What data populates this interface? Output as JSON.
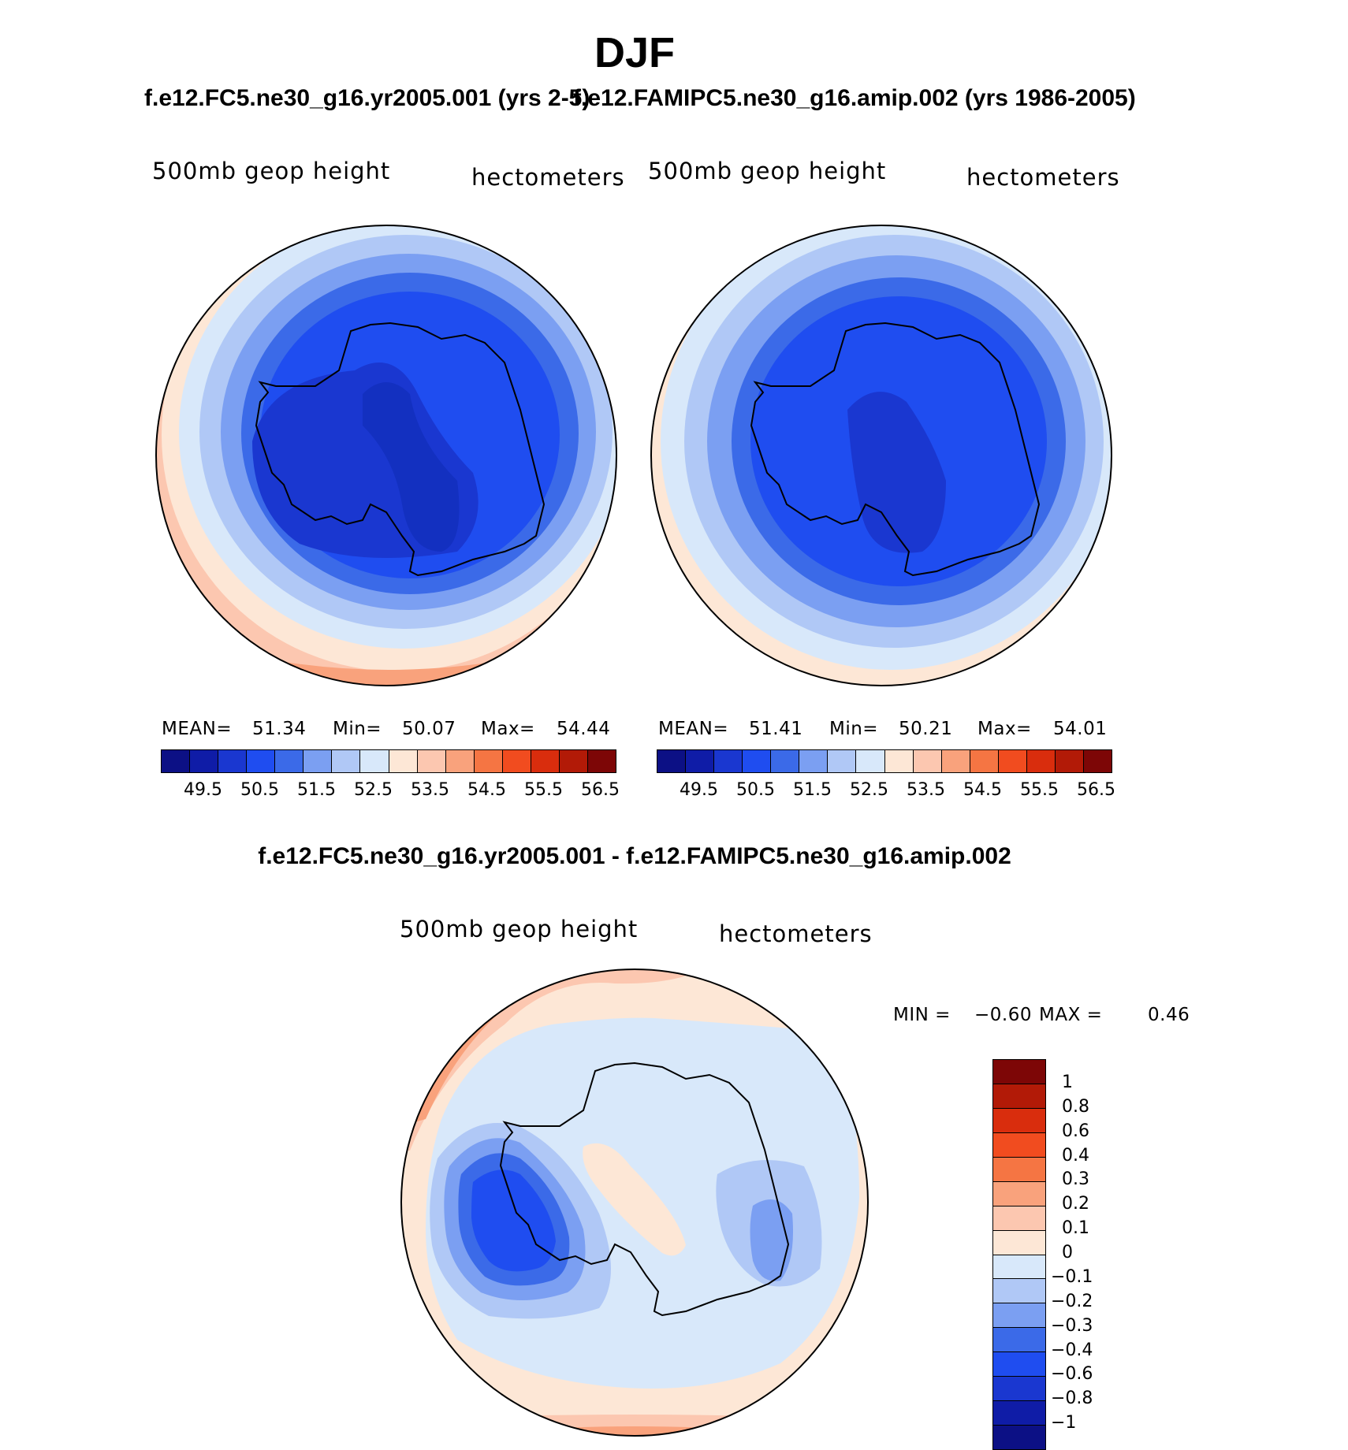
{
  "chart_data": [
    {
      "type": "heatmap",
      "title": "f.e12.FC5.ne30_g16.yr2005.001 (yrs 2-5)",
      "variable": "500mb geop height",
      "units": "hectometers",
      "projection": "south polar stereographic",
      "stats": {
        "mean_label": "MEAN=",
        "mean": "51.34",
        "min_label": "Min=",
        "min": "50.07",
        "max_label": "Max=",
        "max": "54.44"
      },
      "levels": [
        "49.5",
        "50.5",
        "51.5",
        "52.5",
        "53.5",
        "54.5",
        "55.5",
        "56.5"
      ],
      "colorbar_colors": [
        "#0c1085",
        "#0f1ca7",
        "#1a37d0",
        "#1f4df0",
        "#3b6ae8",
        "#7b9ff2",
        "#b0c8f6",
        "#d8e8fa",
        "#fde7d6",
        "#fcc7b0",
        "#f9a27c",
        "#f57543",
        "#f14c1f",
        "#d92d0d",
        "#b21a07",
        "#7d0606"
      ]
    },
    {
      "type": "heatmap",
      "title": "f.e12.FAMIPC5.ne30_g16.amip.002 (yrs 1986-2005)",
      "variable": "500mb geop height",
      "units": "hectometers",
      "projection": "south polar stereographic",
      "stats": {
        "mean_label": "MEAN=",
        "mean": "51.41",
        "min_label": "Min=",
        "min": "50.21",
        "max_label": "Max=",
        "max": "54.01"
      },
      "levels": [
        "49.5",
        "50.5",
        "51.5",
        "52.5",
        "53.5",
        "54.5",
        "55.5",
        "56.5"
      ]
    },
    {
      "type": "heatmap",
      "title": "f.e12.FC5.ne30_g16.yr2005.001 - f.e12.FAMIPC5.ne30_g16.amip.002",
      "variable": "500mb geop height",
      "units": "hectometers",
      "projection": "south polar stereographic",
      "stats": {
        "min_label": "MIN =",
        "min": "−0.60",
        "max_label": "MAX =",
        "max": "0.46"
      },
      "levels": [
        "1",
        "0.8",
        "0.6",
        "0.4",
        "0.3",
        "0.2",
        "0.1",
        "0",
        "−0.1",
        "−0.2",
        "−0.3",
        "−0.4",
        "−0.6",
        "−0.8",
        "−1"
      ],
      "colorbar_colors": [
        "#7d0606",
        "#b21a07",
        "#d92d0d",
        "#f14c1f",
        "#f57543",
        "#f9a27c",
        "#fcc7b0",
        "#fde7d6",
        "#d8e8fa",
        "#b0c8f6",
        "#7b9ff2",
        "#3b6ae8",
        "#1f4df0",
        "#1a37d0",
        "#0f1ca7",
        "#0c1085"
      ]
    }
  ],
  "page": {
    "season": "DJF",
    "panel_left_title": "f.e12.FC5.ne30_g16.yr2005.001 (yrs 2-5)",
    "panel_right_title": "f.e12.FAMIPC5.ne30_g16.amip.002 (yrs 1986-2005)",
    "diff_title": "f.e12.FC5.ne30_g16.yr2005.001 - f.e12.FAMIPC5.ne30_g16.amip.002",
    "variable": "500mb geop height",
    "units": "hectometers"
  }
}
